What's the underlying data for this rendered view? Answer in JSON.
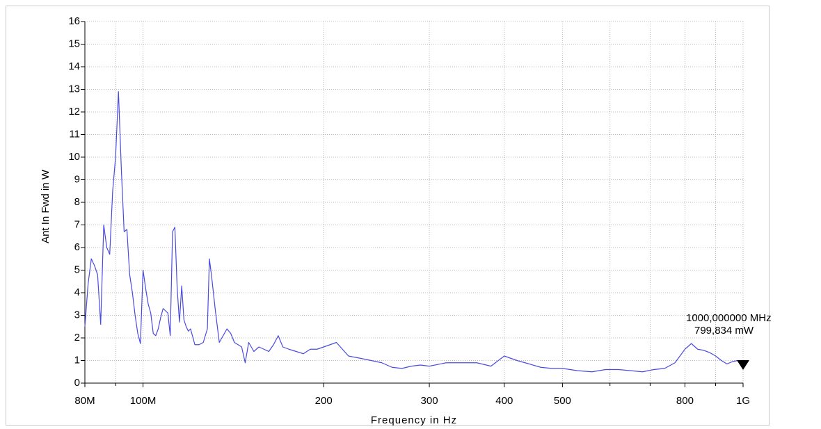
{
  "chart_data": {
    "type": "line",
    "xlabel": "Frequency in Hz",
    "ylabel": "Ant In Fwd in W",
    "xscale": "log",
    "grid": true,
    "xlim": [
      80,
      1000
    ],
    "ylim": [
      0,
      16
    ],
    "xticks": [
      {
        "value": 80,
        "label": "80M"
      },
      {
        "value": 100,
        "label": "100M"
      },
      200,
      300,
      400,
      500,
      800,
      {
        "value": 1000,
        "label": "1G"
      }
    ],
    "minor_xticks": [
      90,
      600,
      700,
      900
    ],
    "yticks": [
      0,
      1,
      2,
      3,
      4,
      5,
      6,
      7,
      8,
      9,
      10,
      11,
      12,
      13,
      14,
      15,
      16
    ],
    "x": [
      80,
      81,
      82,
      83,
      84,
      85,
      86,
      87,
      88,
      89,
      90,
      91,
      92,
      93,
      94,
      95,
      96,
      97,
      98,
      99,
      100,
      101,
      102,
      103,
      104,
      105,
      106,
      107,
      108,
      109,
      110,
      111,
      112,
      113,
      114,
      115,
      116,
      117,
      118,
      119,
      120,
      122,
      124,
      126,
      128,
      129,
      130,
      132,
      134,
      136,
      138,
      140,
      142,
      144,
      146,
      148,
      150,
      153,
      156,
      159,
      162,
      165,
      168,
      171,
      175,
      180,
      185,
      190,
      195,
      200,
      205,
      210,
      220,
      230,
      240,
      250,
      260,
      270,
      280,
      290,
      300,
      320,
      340,
      360,
      380,
      400,
      420,
      440,
      460,
      480,
      500,
      530,
      560,
      590,
      620,
      650,
      680,
      710,
      740,
      770,
      800,
      820,
      840,
      860,
      880,
      900,
      920,
      940,
      960,
      980,
      1000
    ],
    "series": [
      {
        "color": "#4a4ae0",
        "values": [
          2.5,
          4.4,
          5.5,
          5.2,
          4.8,
          2.6,
          7.0,
          6.0,
          5.7,
          8.5,
          10.0,
          12.9,
          9.5,
          6.7,
          6.8,
          4.8,
          4.0,
          3.0,
          2.2,
          1.75,
          5.0,
          4.2,
          3.5,
          3.1,
          2.2,
          2.1,
          2.4,
          2.9,
          3.3,
          3.2,
          3.1,
          2.1,
          6.7,
          6.9,
          4.2,
          2.7,
          4.3,
          2.8,
          2.5,
          2.3,
          2.4,
          1.7,
          1.7,
          1.8,
          2.4,
          5.5,
          4.8,
          3.2,
          1.8,
          2.1,
          2.4,
          2.2,
          1.8,
          1.7,
          1.6,
          0.9,
          1.8,
          1.4,
          1.6,
          1.5,
          1.4,
          1.7,
          2.1,
          1.6,
          1.5,
          1.4,
          1.3,
          1.5,
          1.5,
          1.6,
          1.7,
          1.8,
          1.2,
          1.1,
          1.0,
          0.9,
          0.7,
          0.65,
          0.75,
          0.8,
          0.75,
          0.9,
          0.9,
          0.9,
          0.75,
          1.2,
          1.0,
          0.85,
          0.7,
          0.65,
          0.65,
          0.55,
          0.5,
          0.6,
          0.6,
          0.55,
          0.5,
          0.6,
          0.65,
          0.9,
          1.5,
          1.75,
          1.5,
          1.45,
          1.35,
          1.2,
          1.0,
          0.85,
          0.95,
          1.0,
          0.8
        ]
      }
    ],
    "marker": {
      "x": 1000,
      "y": 0.799834,
      "labels": [
        "1000,000000 MHz",
        "799,834 mW"
      ]
    }
  }
}
